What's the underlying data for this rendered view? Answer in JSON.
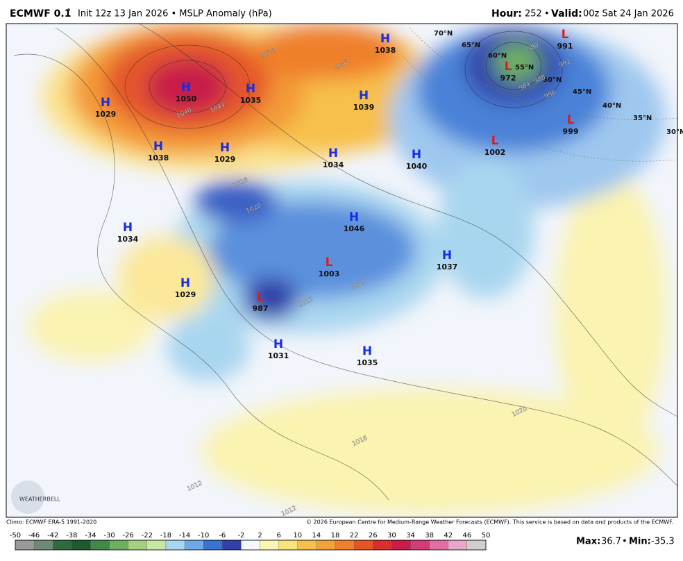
{
  "header": {
    "model": "ECMWF 0.1",
    "degree": "°",
    "run": "Init 12z 13 Jan 2026 • MSLP Anomaly (hPa)",
    "hour_label": "Hour:",
    "hour": "252",
    "sep": "•",
    "valid_label": "Valid:",
    "valid": "00z Sat 24 Jan 2026"
  },
  "centers": [
    {
      "kind": "H",
      "value": "1029"
    },
    {
      "kind": "H",
      "value": "1050"
    },
    {
      "kind": "H",
      "value": "1035"
    },
    {
      "kind": "H",
      "value": "1038"
    },
    {
      "kind": "H",
      "value": "1039"
    },
    {
      "kind": "H",
      "value": "1038"
    },
    {
      "kind": "H",
      "value": "1029"
    },
    {
      "kind": "H",
      "value": "1034"
    },
    {
      "kind": "H",
      "value": "1040"
    },
    {
      "kind": "H",
      "value": "1034"
    },
    {
      "kind": "H",
      "value": "1046"
    },
    {
      "kind": "H",
      "value": "1037"
    },
    {
      "kind": "L",
      "value": "1003"
    },
    {
      "kind": "H",
      "value": "1029"
    },
    {
      "kind": "L",
      "value": "987"
    },
    {
      "kind": "H",
      "value": "1031"
    },
    {
      "kind": "H",
      "value": "1035"
    },
    {
      "kind": "L",
      "value": "991"
    },
    {
      "kind": "L",
      "value": "972"
    },
    {
      "kind": "L",
      "value": "1002"
    },
    {
      "kind": "L",
      "value": "999"
    }
  ],
  "latitudes": [
    "70°N",
    "65°N",
    "60°N",
    "55°N",
    "50°N",
    "45°N",
    "40°N",
    "35°N",
    "30°N"
  ],
  "contours": [
    "1024",
    "1040",
    "1044",
    "1032",
    "1016",
    "1020",
    "1012",
    "1008",
    "996",
    "988",
    "980",
    "984",
    "992",
    "1020",
    "1016",
    "1012",
    "1012"
  ],
  "logo": "WEATHERBELL",
  "footer": {
    "climo": "Climo: ECMWF ERA-5 1991-2020",
    "copyright": "© 2026 European Centre for Medium-Range Weather Forecasts (ECMWF). This service is based on data and products of the ECMWF."
  },
  "colorbar": {
    "ticks": [
      -50,
      -46,
      -42,
      -38,
      -34,
      -30,
      -26,
      -22,
      -18,
      -14,
      -10,
      -6,
      -2,
      2,
      6,
      10,
      14,
      18,
      22,
      26,
      30,
      34,
      38,
      42,
      46,
      50
    ],
    "colors": [
      "#9a9a9a",
      "#6f8a74",
      "#2f6b3e",
      "#1f5a2f",
      "#3f8a4a",
      "#6fae5e",
      "#a6cf7f",
      "#c9e6a6",
      "#a9d6ef",
      "#6fa9e6",
      "#3a74d2",
      "#3340a8",
      "#f5f8fc",
      "#fbf6b3",
      "#f9e37a",
      "#f6c04a",
      "#f3a23a",
      "#ef7f2a",
      "#e75525",
      "#d9302c",
      "#c81e48",
      "#d43c78",
      "#e070a4",
      "#e8a7c8",
      "#cfcfcf"
    ]
  },
  "stats": {
    "max_label": "Max:",
    "max": 36.7,
    "sep": "•",
    "min_label": "Min:",
    "min": -35.3
  }
}
